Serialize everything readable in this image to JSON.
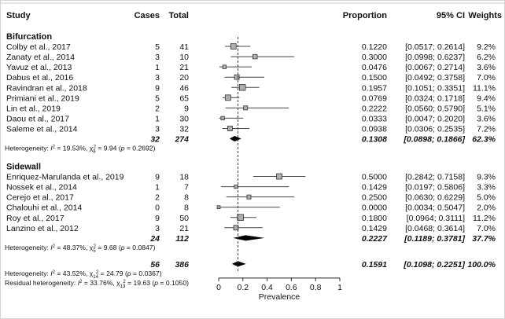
{
  "headers": {
    "study": "Study",
    "cases": "Cases",
    "total": "Total",
    "proportion": "Proportion",
    "ci": "95% CI",
    "weights": "Weights"
  },
  "chart_data": {
    "type": "forest",
    "xlabel": "Prevalence",
    "xlim": [
      0,
      1
    ],
    "x_ticks": [
      "0",
      "0.2",
      "0.4",
      "0.6",
      "0.8",
      "1"
    ],
    "overall_reference": 0.1591,
    "groups": [
      {
        "name": "Bifurcation",
        "studies": [
          {
            "study": "Colby et al., 2017",
            "cases": "5",
            "total": "41",
            "est": 0.122,
            "lo": 0.0517,
            "hi": 0.2614,
            "prop": "0.1220",
            "ci": "[0.0517; 0.2614]",
            "weight": "9.2%"
          },
          {
            "study": "Zanaty et al., 2014",
            "cases": "3",
            "total": "10",
            "est": 0.3,
            "lo": 0.0998,
            "hi": 0.6237,
            "prop": "0.3000",
            "ci": "[0.0998; 0.6237]",
            "weight": "6.2%"
          },
          {
            "study": "Yavuz et al., 2013",
            "cases": "1",
            "total": "21",
            "est": 0.0476,
            "lo": 0.0067,
            "hi": 0.2714,
            "prop": "0.0476",
            "ci": "[0.0067; 0.2714]",
            "weight": "3.6%"
          },
          {
            "study": "Dabus et al., 2016",
            "cases": "3",
            "total": "20",
            "est": 0.15,
            "lo": 0.0492,
            "hi": 0.3758,
            "prop": "0.1500",
            "ci": "[0.0492; 0.3758]",
            "weight": "7.0%"
          },
          {
            "study": "Ravindran et al., 2018",
            "cases": "9",
            "total": "46",
            "est": 0.1957,
            "lo": 0.1051,
            "hi": 0.3351,
            "prop": "0.1957",
            "ci": "[0.1051; 0.3351]",
            "weight": "11.1%"
          },
          {
            "study": "Primiani et al., 2019",
            "cases": "5",
            "total": "65",
            "est": 0.0769,
            "lo": 0.0324,
            "hi": 0.1718,
            "prop": "0.0769",
            "ci": "[0.0324; 0.1718]",
            "weight": "9.4%"
          },
          {
            "study": "Lin et al., 2019",
            "cases": "2",
            "total": "9",
            "est": 0.2222,
            "lo": 0.056,
            "hi": 0.579,
            "prop": "0.2222",
            "ci": "[0.0560; 0.5790]",
            "weight": "5.1%"
          },
          {
            "study": "Daou et al., 2017",
            "cases": "1",
            "total": "30",
            "est": 0.0333,
            "lo": 0.0047,
            "hi": 0.202,
            "prop": "0.0333",
            "ci": "[0.0047; 0.2020]",
            "weight": "3.6%"
          },
          {
            "study": "Saleme et al., 2014",
            "cases": "3",
            "total": "32",
            "est": 0.0938,
            "lo": 0.0306,
            "hi": 0.2535,
            "prop": "0.0938",
            "ci": "[0.0306; 0.2535]",
            "weight": "7.2%"
          }
        ],
        "summary": {
          "cases": "32",
          "total": "274",
          "est": 0.1308,
          "lo": 0.0898,
          "hi": 0.1866,
          "prop": "0.1308",
          "ci": "[0.0898; 0.1866]",
          "weight": "62.3%"
        },
        "het": {
          "lead": "Heterogeneity: ",
          "i2": "19.53%",
          "chi_sub": "8",
          "chi_val": "9.94",
          "p": "0.2692"
        }
      },
      {
        "name": "Sidewall",
        "studies": [
          {
            "study": "Enriquez-Marulanda et al., 2019",
            "cases": "9",
            "total": "18",
            "est": 0.5,
            "lo": 0.2842,
            "hi": 0.7158,
            "prop": "0.5000",
            "ci": "[0.2842; 0.7158]",
            "weight": "9.3%"
          },
          {
            "study": "Nossek et al., 2014",
            "cases": "1",
            "total": "7",
            "est": 0.1429,
            "lo": 0.0197,
            "hi": 0.5806,
            "prop": "0.1429",
            "ci": "[0.0197; 0.5806]",
            "weight": "3.3%"
          },
          {
            "study": "Cerejo et al., 2017",
            "cases": "2",
            "total": "8",
            "est": 0.25,
            "lo": 0.063,
            "hi": 0.6229,
            "prop": "0.2500",
            "ci": "[0.0630; 0.6229]",
            "weight": "5.0%"
          },
          {
            "study": "Chalouhi et al., 2014",
            "cases": "0",
            "total": "8",
            "est": 0.0,
            "lo": 0.0034,
            "hi": 0.5047,
            "prop": "0.0000",
            "ci": "[0.0034; 0.5047]",
            "weight": "2.0%"
          },
          {
            "study": "Roy et al., 2017",
            "cases": "9",
            "total": "50",
            "est": 0.18,
            "lo": 0.0964,
            "hi": 0.3111,
            "prop": "0.1800",
            "ci": "[0.0964; 0.3111]",
            "weight": "11.2%"
          },
          {
            "study": "Lanzino et al., 2012",
            "cases": "3",
            "total": "21",
            "est": 0.1429,
            "lo": 0.0468,
            "hi": 0.3614,
            "prop": "0.1429",
            "ci": "[0.0468; 0.3614]",
            "weight": "7.0%"
          }
        ],
        "summary": {
          "cases": "24",
          "total": "112",
          "est": 0.2227,
          "lo": 0.1189,
          "hi": 0.3781,
          "prop": "0.2227",
          "ci": "[0.1189; 0.3781]",
          "weight": "37.7%"
        },
        "het": {
          "lead": "Heterogeneity: ",
          "i2": "48.37%",
          "chi_sub": "5",
          "chi_val": "9.68",
          "p": "0.0847"
        }
      }
    ],
    "overall": {
      "cases": "56",
      "total": "386",
      "est": 0.1591,
      "lo": 0.1098,
      "hi": 0.2251,
      "prop": "0.1591",
      "ci": "[0.1098; 0.2251]",
      "weight": "100.0%"
    },
    "overall_het": {
      "lead": "Heterogeneity: ",
      "i2": "43.52%",
      "chi_sub": "14",
      "chi_val": "24.79",
      "p": "0.0367"
    },
    "residual_het": {
      "lead": "Residual heterogeneity: ",
      "i2": "33.76%",
      "chi_sub": "13",
      "chi_val": "19.63",
      "p": "0.1050"
    }
  }
}
